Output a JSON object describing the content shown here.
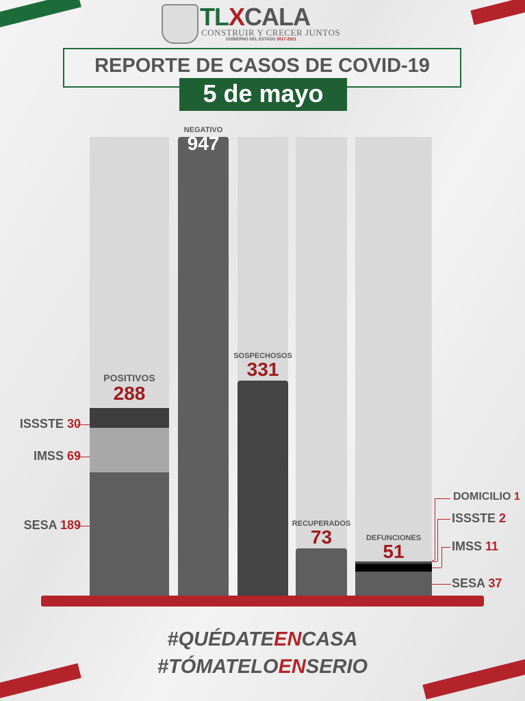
{
  "header": {
    "brand_t": "T",
    "brand_l": "L",
    "brand_x": "X",
    "brand_rest": "CALA",
    "slogan": "CONSTRUIR Y CRECER JUNTOS",
    "gobierno": "GOBIERNO DEL ESTADO",
    "period": "2017-2021",
    "title": "REPORTE DE CASOS DE COVID-19",
    "date": "5 de mayo"
  },
  "colors": {
    "green": "#1e6b3a",
    "red": "#b3242a",
    "dark_grey": "#444444",
    "mid_grey": "#5e5e5e",
    "light_grey": "#a8a8a8"
  },
  "chart_data": {
    "type": "bar",
    "categories": [
      "POSITIVOS",
      "NEGATIVO",
      "SOSPECHOSOS",
      "RECUPERADOS",
      "DEFUNCIONES"
    ],
    "values": [
      288,
      947,
      331,
      73,
      51
    ],
    "value_labels": [
      "288",
      "947",
      "331",
      "73",
      "51"
    ],
    "stacks": {
      "POSITIVOS": [
        {
          "name": "SESA",
          "value": 189,
          "label": "189",
          "color": "#5e5e5e"
        },
        {
          "name": "IMSS",
          "value": 69,
          "label": "69",
          "color": "#a8a8a8"
        },
        {
          "name": "ISSSTE",
          "value": 30,
          "label": "30",
          "color": "#3e3e3e"
        }
      ],
      "DEFUNCIONES": [
        {
          "name": "SESA",
          "value": 37,
          "label": "37",
          "color": "#5e5e5e"
        },
        {
          "name": "IMSS",
          "value": 11,
          "label": "11",
          "color": "#000000"
        },
        {
          "name": "ISSSTE",
          "value": 2,
          "label": "2",
          "color": "#3a3a3a"
        },
        {
          "name": "DOMICILIO",
          "value": 1,
          "label": "1",
          "color": "#555555"
        }
      ]
    },
    "bar_colors": [
      "#5e5e5e",
      "#5f5f5f",
      "#444444",
      "#5e5e5e",
      "#5e5e5e"
    ],
    "grid": false
  },
  "footer": {
    "h1_a": "#QUÉDATE",
    "h1_b": "EN",
    "h1_c": "CASA",
    "h2_a": "#TÓMATELO",
    "h2_b": "EN",
    "h2_c": "SERIO"
  }
}
